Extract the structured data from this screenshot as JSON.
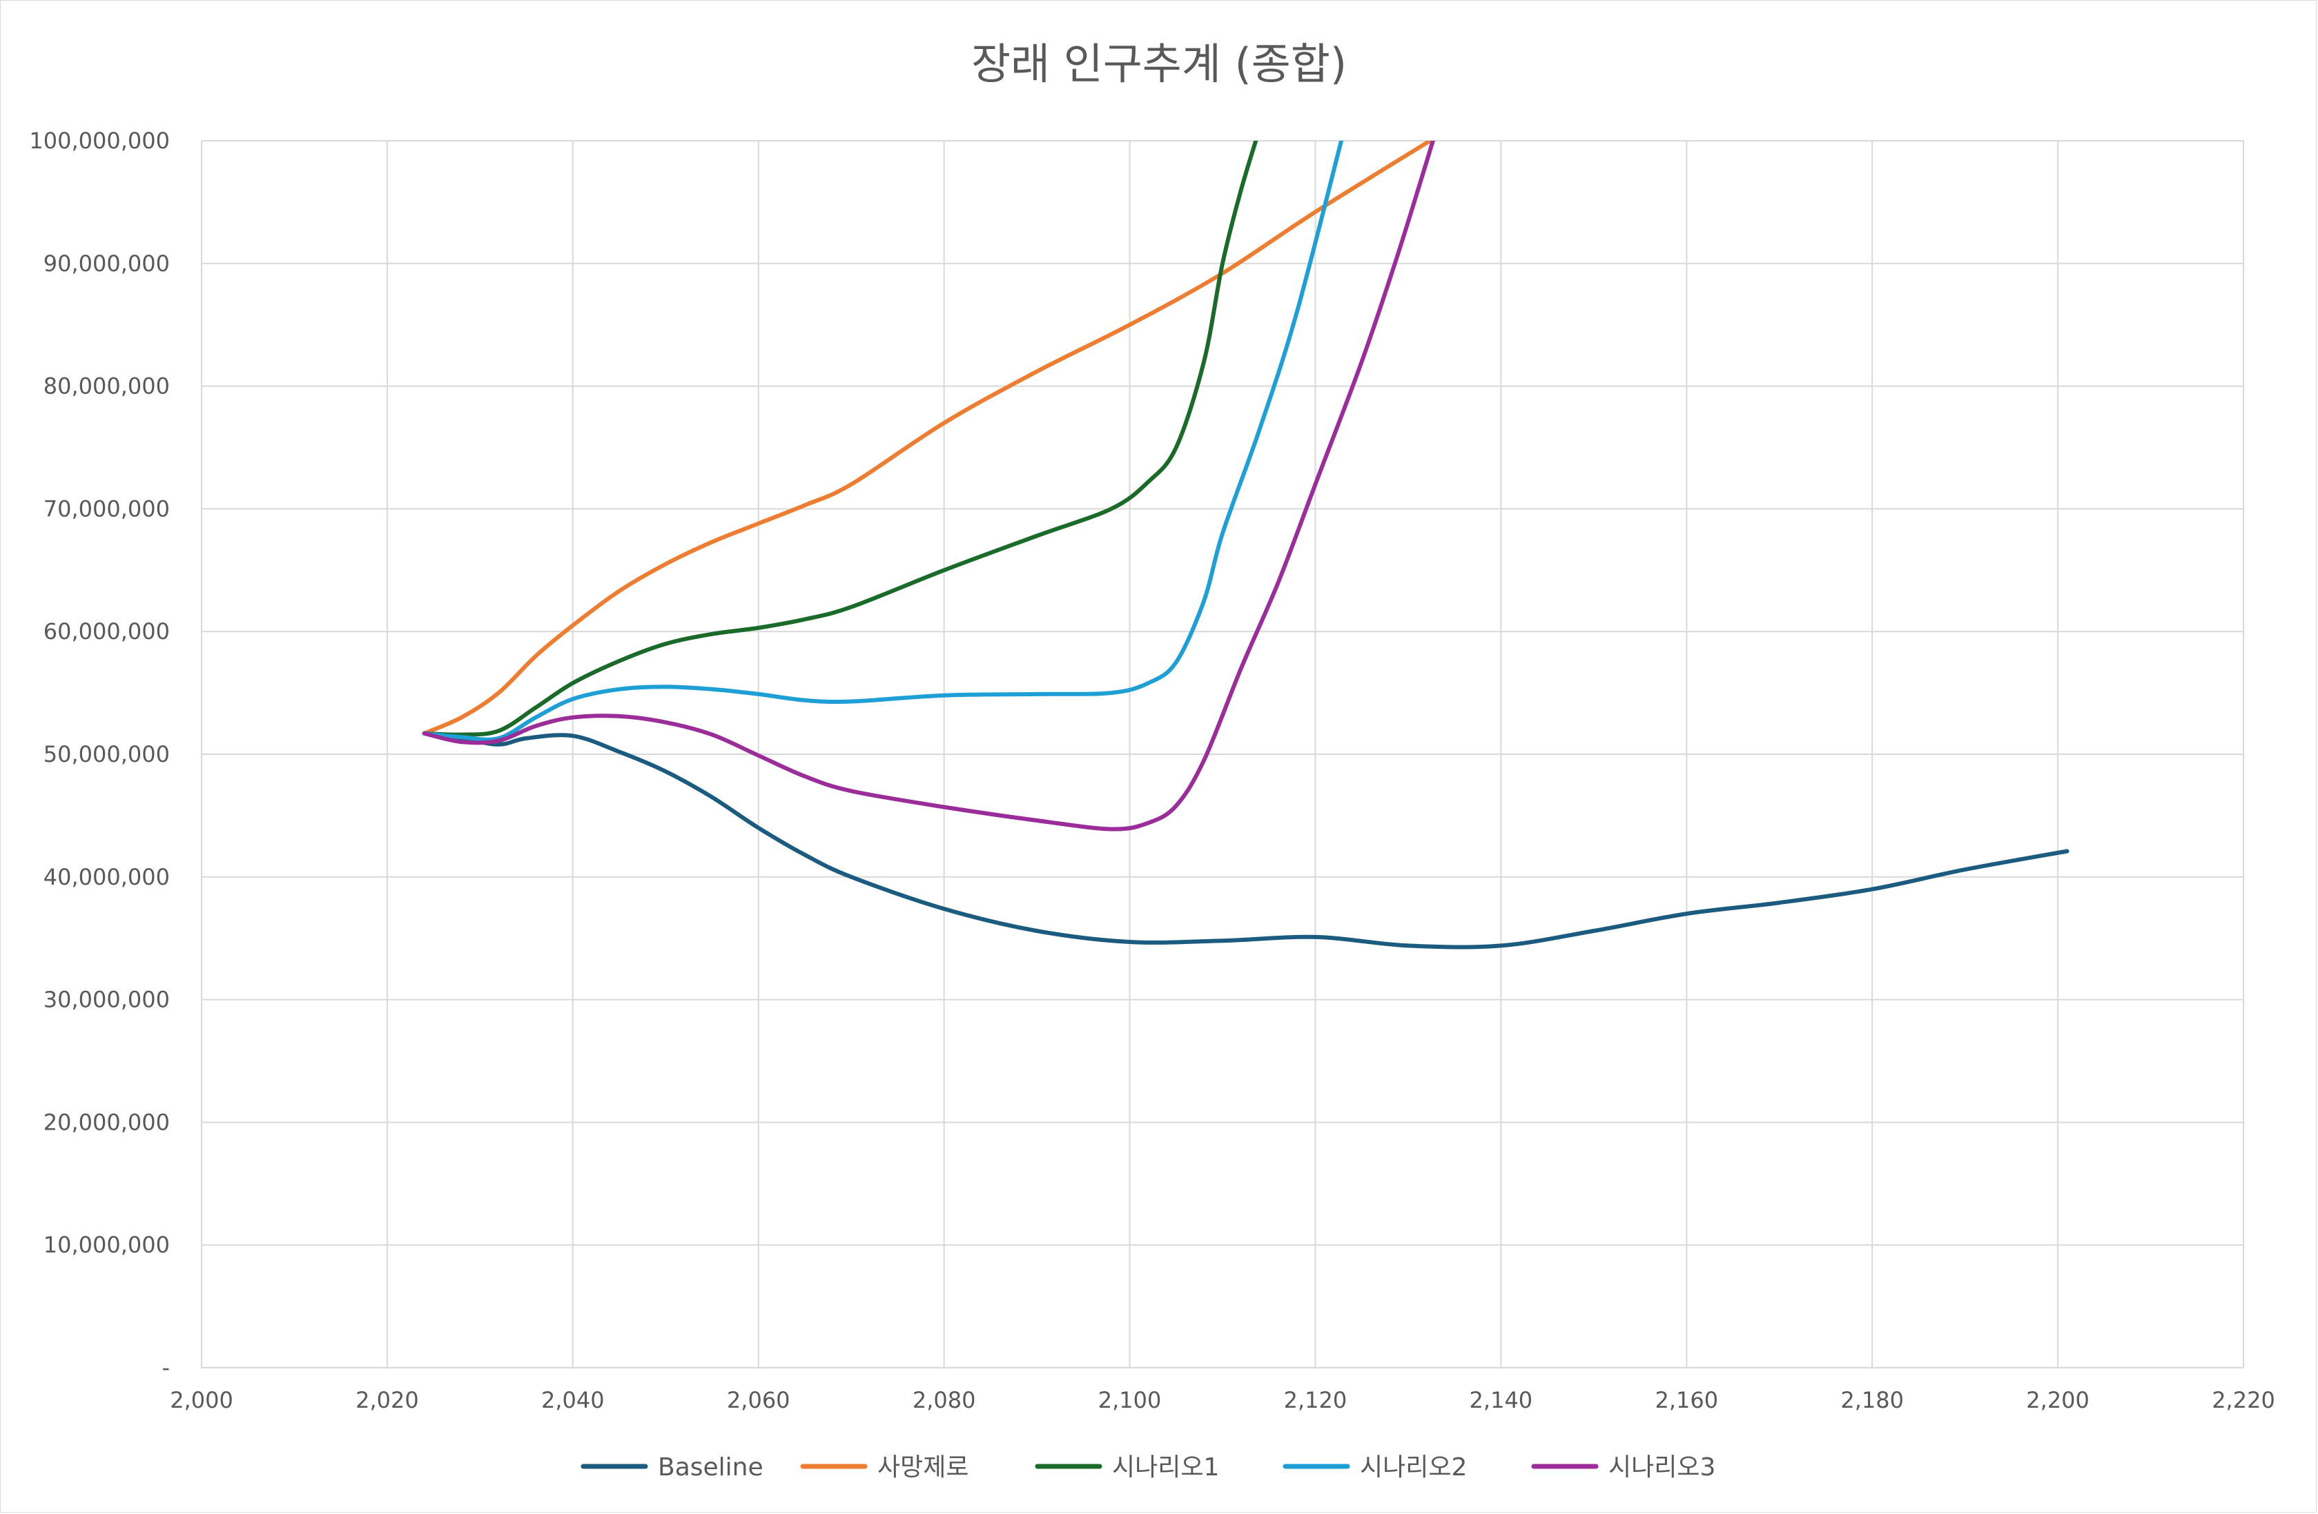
{
  "chart_data": {
    "type": "line",
    "title": "장래 인구추계 (종합)",
    "xlabel": "",
    "ylabel": "",
    "xlim": [
      2000,
      2220
    ],
    "ylim": [
      0,
      100000000
    ],
    "x_ticks": [
      2000,
      2020,
      2040,
      2060,
      2080,
      2100,
      2120,
      2140,
      2160,
      2180,
      2200,
      2220
    ],
    "x_tick_labels": [
      "2,000",
      "2,020",
      "2,040",
      "2,060",
      "2,080",
      "2,100",
      "2,120",
      "2,140",
      "2,160",
      "2,180",
      "2,200",
      "2,220"
    ],
    "y_ticks": [
      0,
      10000000,
      20000000,
      30000000,
      40000000,
      50000000,
      60000000,
      70000000,
      80000000,
      90000000,
      100000000
    ],
    "y_tick_labels": [
      "-",
      "10,000,000",
      "20,000,000",
      "30,000,000",
      "40,000,000",
      "50,000,000",
      "60,000,000",
      "70,000,000",
      "80,000,000",
      "90,000,000",
      "100,000,000"
    ],
    "grid": true,
    "legend_position": "bottom",
    "series": [
      {
        "name": "Baseline",
        "color": "#1b5b7f",
        "points": [
          [
            2024,
            51700000
          ],
          [
            2028,
            51300000
          ],
          [
            2032,
            50800000
          ],
          [
            2035,
            51300000
          ],
          [
            2040,
            51500000
          ],
          [
            2045,
            50200000
          ],
          [
            2050,
            48600000
          ],
          [
            2055,
            46500000
          ],
          [
            2060,
            44000000
          ],
          [
            2065,
            41800000
          ],
          [
            2070,
            40000000
          ],
          [
            2080,
            37400000
          ],
          [
            2090,
            35600000
          ],
          [
            2100,
            34700000
          ],
          [
            2110,
            34800000
          ],
          [
            2120,
            35100000
          ],
          [
            2130,
            34400000
          ],
          [
            2140,
            34400000
          ],
          [
            2150,
            35600000
          ],
          [
            2160,
            37000000
          ],
          [
            2170,
            37900000
          ],
          [
            2180,
            39000000
          ],
          [
            2190,
            40600000
          ],
          [
            2201,
            42100000
          ]
        ]
      },
      {
        "name": "사망제로",
        "color": "#ed7d31",
        "points": [
          [
            2024,
            51700000
          ],
          [
            2028,
            53000000
          ],
          [
            2032,
            55000000
          ],
          [
            2036,
            58000000
          ],
          [
            2040,
            60500000
          ],
          [
            2045,
            63300000
          ],
          [
            2050,
            65500000
          ],
          [
            2055,
            67300000
          ],
          [
            2060,
            68800000
          ],
          [
            2065,
            70300000
          ],
          [
            2070,
            72000000
          ],
          [
            2080,
            77000000
          ],
          [
            2090,
            81200000
          ],
          [
            2100,
            85000000
          ],
          [
            2110,
            89200000
          ],
          [
            2120,
            94200000
          ],
          [
            2133,
            100300000
          ]
        ]
      },
      {
        "name": "시나리오1",
        "color": "#1a6b2a",
        "points": [
          [
            2024,
            51700000
          ],
          [
            2028,
            51600000
          ],
          [
            2032,
            51900000
          ],
          [
            2036,
            53800000
          ],
          [
            2040,
            55800000
          ],
          [
            2045,
            57600000
          ],
          [
            2050,
            59000000
          ],
          [
            2055,
            59800000
          ],
          [
            2060,
            60300000
          ],
          [
            2065,
            61000000
          ],
          [
            2070,
            62000000
          ],
          [
            2080,
            65000000
          ],
          [
            2090,
            67800000
          ],
          [
            2098,
            70000000
          ],
          [
            2102,
            72200000
          ],
          [
            2105,
            75000000
          ],
          [
            2108,
            82000000
          ],
          [
            2110,
            90000000
          ],
          [
            2112,
            96000000
          ],
          [
            2114,
            101000000
          ]
        ]
      },
      {
        "name": "시나리오2",
        "color": "#1e9fd6",
        "points": [
          [
            2024,
            51700000
          ],
          [
            2028,
            51400000
          ],
          [
            2032,
            51300000
          ],
          [
            2036,
            53000000
          ],
          [
            2040,
            54500000
          ],
          [
            2045,
            55300000
          ],
          [
            2050,
            55500000
          ],
          [
            2055,
            55300000
          ],
          [
            2060,
            54900000
          ],
          [
            2065,
            54400000
          ],
          [
            2070,
            54300000
          ],
          [
            2080,
            54800000
          ],
          [
            2090,
            54900000
          ],
          [
            2098,
            55000000
          ],
          [
            2102,
            55800000
          ],
          [
            2105,
            57500000
          ],
          [
            2108,
            62500000
          ],
          [
            2110,
            68000000
          ],
          [
            2114,
            76500000
          ],
          [
            2118,
            86000000
          ],
          [
            2123,
            100600000
          ]
        ]
      },
      {
        "name": "시나리오3",
        "color": "#9b2d9b",
        "points": [
          [
            2024,
            51700000
          ],
          [
            2028,
            51000000
          ],
          [
            2032,
            51100000
          ],
          [
            2036,
            52300000
          ],
          [
            2040,
            53000000
          ],
          [
            2045,
            53100000
          ],
          [
            2050,
            52600000
          ],
          [
            2055,
            51600000
          ],
          [
            2060,
            49900000
          ],
          [
            2065,
            48200000
          ],
          [
            2070,
            47000000
          ],
          [
            2080,
            45700000
          ],
          [
            2090,
            44600000
          ],
          [
            2098,
            43900000
          ],
          [
            2102,
            44400000
          ],
          [
            2105,
            45800000
          ],
          [
            2108,
            49500000
          ],
          [
            2112,
            57000000
          ],
          [
            2116,
            64000000
          ],
          [
            2120,
            72000000
          ],
          [
            2125,
            82000000
          ],
          [
            2129,
            91000000
          ],
          [
            2133,
            100800000
          ]
        ]
      }
    ]
  }
}
